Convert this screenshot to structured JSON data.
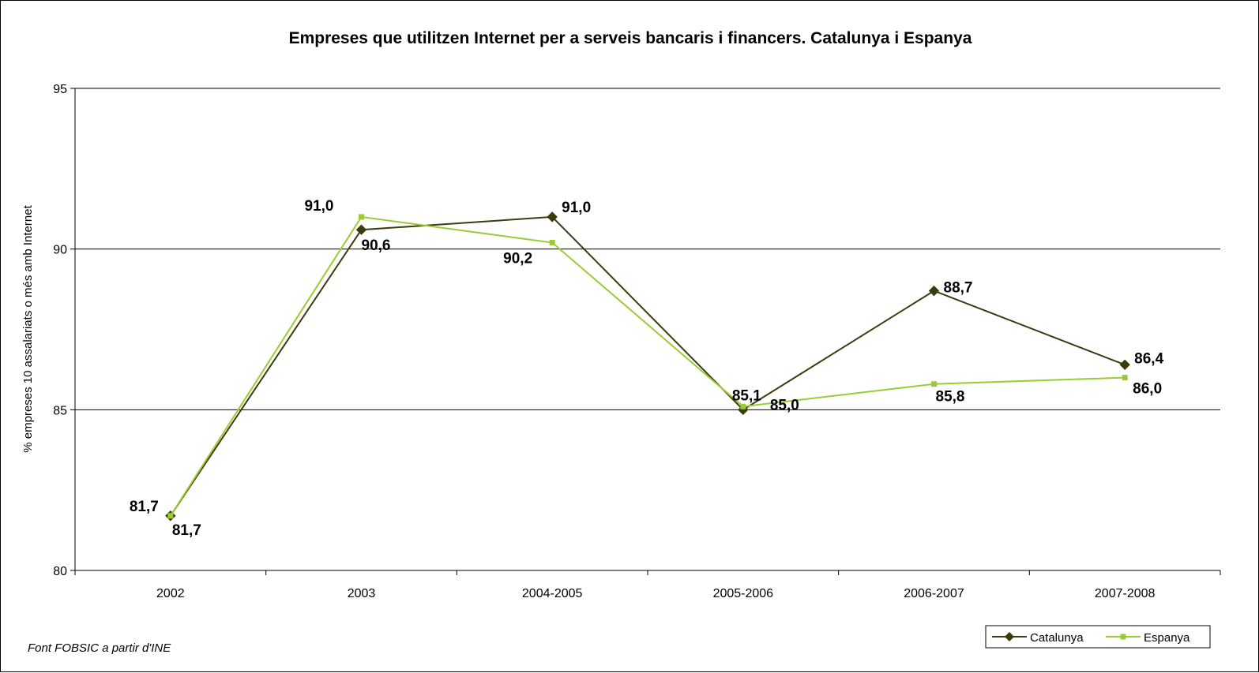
{
  "chart_data": {
    "type": "line",
    "title": "Empreses que utilitzen Internet per a serveis bancaris i financers. Catalunya i Espanya",
    "xlabel": "",
    "ylabel": "% empreses 10 assalariats o més amb Internet",
    "categories": [
      "2002",
      "2003",
      "2004-2005",
      "2005-2006",
      "2006-2007",
      "2007-2008"
    ],
    "ylim": [
      80,
      95
    ],
    "yticks": [
      80,
      85,
      90,
      95
    ],
    "grid": true,
    "legend_position": "bottom-right",
    "series": [
      {
        "name": "Catalunya",
        "color": "#3d3a10",
        "marker": "diamond",
        "values": [
          81.7,
          90.6,
          91.0,
          85.0,
          88.7,
          86.4
        ],
        "labels": [
          "81,7",
          "90,6",
          "91,0",
          "85,0",
          "88,7",
          "86,4"
        ]
      },
      {
        "name": "Espanya",
        "color": "#99cc33",
        "marker": "square",
        "values": [
          81.7,
          91.0,
          90.2,
          85.1,
          85.8,
          86.0
        ],
        "labels": [
          "81,7",
          "91,0",
          "90,2",
          "85,1",
          "85,8",
          "86,0"
        ]
      }
    ],
    "source_note": "Font FOBSIC a partir d'INE"
  }
}
